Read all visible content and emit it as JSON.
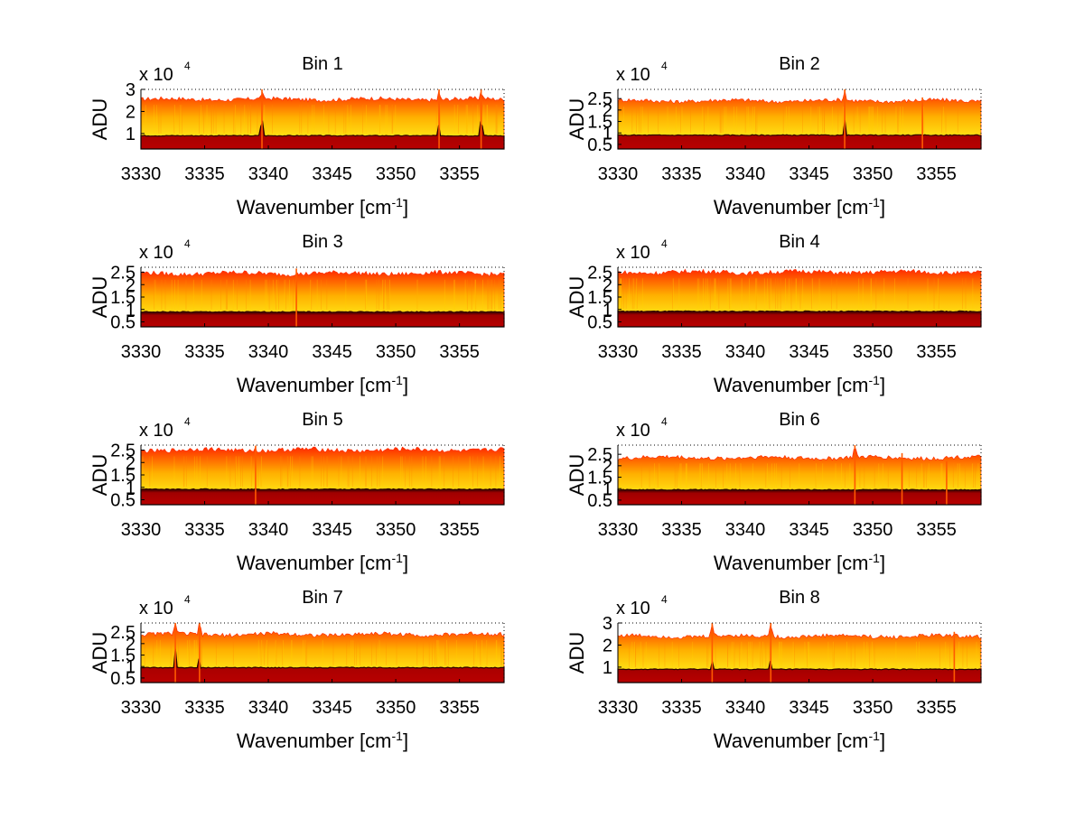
{
  "colors": {
    "spectrum_top": "#ff2a00",
    "spectrum_mid": "#ffb000",
    "spectrum_low": "#ffff20",
    "baseline_dark": "#a00000",
    "baseline_top": "#2a0000",
    "axis": "#000000"
  },
  "chart_data": [
    {
      "type": "area",
      "title": "Bin 1",
      "xlabel": "Wavenumber [cm-1]",
      "ylabel": "ADU",
      "exponent_label": "x 10",
      "exponent": "4",
      "xlim": [
        3330,
        3358.5
      ],
      "ylim": [
        0.3,
        3.0
      ],
      "xticks": [
        "3330",
        "3335",
        "3340",
        "3345",
        "3350",
        "3355"
      ],
      "yticks": [
        "1",
        "2",
        "3"
      ],
      "grid": "dotted top edge",
      "upper_level": 2.55,
      "lower_level": 0.9,
      "peaks": [
        {
          "x": 3339.5,
          "upper": 3.0,
          "lower": 1.7
        },
        {
          "x": 3353.4,
          "upper": 3.0,
          "lower": 1.5
        },
        {
          "x": 3356.7,
          "upper": 3.0,
          "lower": 1.7
        }
      ]
    },
    {
      "type": "area",
      "title": "Bin 2",
      "xlabel": "Wavenumber [cm-1]",
      "ylabel": "ADU",
      "exponent_label": "x 10",
      "exponent": "4",
      "xlim": [
        3330,
        3358.5
      ],
      "ylim": [
        0.3,
        2.9
      ],
      "xticks": [
        "3330",
        "3335",
        "3340",
        "3345",
        "3350",
        "3355"
      ],
      "yticks": [
        "0.5",
        "1",
        "1.5",
        "2",
        "2.5"
      ],
      "grid": "dotted top edge",
      "upper_level": 2.4,
      "lower_level": 0.9,
      "peaks": [
        {
          "x": 3347.8,
          "upper": 2.9,
          "lower": 1.6
        },
        {
          "x": 3353.9,
          "upper": 2.55,
          "lower": 0.9
        }
      ]
    },
    {
      "type": "area",
      "title": "Bin 3",
      "xlabel": "Wavenumber [cm-1]",
      "ylabel": "ADU",
      "exponent_label": "x 10",
      "exponent": "4",
      "xlim": [
        3330,
        3358.5
      ],
      "ylim": [
        0.3,
        2.7
      ],
      "xticks": [
        "3330",
        "3335",
        "3340",
        "3345",
        "3350",
        "3355"
      ],
      "yticks": [
        "0.5",
        "1",
        "1.5",
        "2",
        "2.5"
      ],
      "grid": "dotted top edge",
      "upper_level": 2.45,
      "lower_level": 0.9,
      "peaks": [
        {
          "x": 3342.2,
          "upper": 2.65,
          "lower": 0.9
        }
      ]
    },
    {
      "type": "area",
      "title": "Bin 4",
      "xlabel": "Wavenumber [cm-1]",
      "ylabel": "ADU",
      "exponent_label": "x 10",
      "exponent": "4",
      "xlim": [
        3330,
        3358.5
      ],
      "ylim": [
        0.3,
        2.7
      ],
      "xticks": [
        "3330",
        "3335",
        "3340",
        "3345",
        "3350",
        "3355"
      ],
      "yticks": [
        "0.5",
        "1",
        "1.5",
        "2",
        "2.5"
      ],
      "grid": "dotted top edge",
      "upper_level": 2.5,
      "lower_level": 0.92,
      "peaks": []
    },
    {
      "type": "area",
      "title": "Bin 5",
      "xlabel": "Wavenumber [cm-1]",
      "ylabel": "ADU",
      "exponent_label": "x 10",
      "exponent": "4",
      "xlim": [
        3330,
        3358.5
      ],
      "ylim": [
        0.3,
        2.7
      ],
      "xticks": [
        "3330",
        "3335",
        "3340",
        "3345",
        "3350",
        "3355"
      ],
      "yticks": [
        "0.5",
        "1",
        "1.5",
        "2",
        "2.5"
      ],
      "grid": "dotted top edge",
      "upper_level": 2.5,
      "lower_level": 0.92,
      "peaks": [
        {
          "x": 3339.0,
          "upper": 2.68,
          "lower": 0.95
        }
      ]
    },
    {
      "type": "area",
      "title": "Bin 6",
      "xlabel": "Wavenumber [cm-1]",
      "ylabel": "ADU",
      "exponent_label": "x 10",
      "exponent": "4",
      "xlim": [
        3330,
        3358.5
      ],
      "ylim": [
        0.3,
        2.9
      ],
      "xticks": [
        "3330",
        "3335",
        "3340",
        "3345",
        "3350",
        "3355"
      ],
      "yticks": [
        "0.5",
        "1",
        "1.5",
        "2",
        "2.5"
      ],
      "grid": "dotted top edge",
      "upper_level": 2.35,
      "lower_level": 0.95,
      "peaks": [
        {
          "x": 3348.6,
          "upper": 2.95,
          "lower": 1.1
        },
        {
          "x": 3352.3,
          "upper": 2.55,
          "lower": 0.95
        },
        {
          "x": 3355.8,
          "upper": 2.2,
          "lower": 0.9
        }
      ]
    },
    {
      "type": "area",
      "title": "Bin 7",
      "xlabel": "Wavenumber [cm-1]",
      "ylabel": "ADU",
      "exponent_label": "x 10",
      "exponent": "4",
      "xlim": [
        3330,
        3358.5
      ],
      "ylim": [
        0.3,
        2.9
      ],
      "xticks": [
        "3330",
        "3335",
        "3340",
        "3345",
        "3350",
        "3355"
      ],
      "yticks": [
        "0.5",
        "1",
        "1.5",
        "2",
        "2.5"
      ],
      "grid": "dotted top edge",
      "upper_level": 2.4,
      "lower_level": 0.95,
      "peaks": [
        {
          "x": 3332.7,
          "upper": 3.0,
          "lower": 1.8
        },
        {
          "x": 3334.6,
          "upper": 3.0,
          "lower": 1.5
        }
      ]
    },
    {
      "type": "area",
      "title": "Bin 8",
      "xlabel": "Wavenumber [cm-1]",
      "ylabel": "ADU",
      "exponent_label": "x 10",
      "exponent": "4",
      "xlim": [
        3330,
        3358.5
      ],
      "ylim": [
        0.3,
        3.0
      ],
      "xticks": [
        "3330",
        "3335",
        "3340",
        "3345",
        "3350",
        "3355"
      ],
      "yticks": [
        "1",
        "2",
        "3"
      ],
      "grid": "dotted top edge",
      "upper_level": 2.4,
      "lower_level": 0.9,
      "peaks": [
        {
          "x": 3337.4,
          "upper": 3.0,
          "lower": 1.3
        },
        {
          "x": 3342.0,
          "upper": 3.0,
          "lower": 1.4
        },
        {
          "x": 3356.4,
          "upper": 2.6,
          "lower": 0.9
        }
      ]
    }
  ]
}
